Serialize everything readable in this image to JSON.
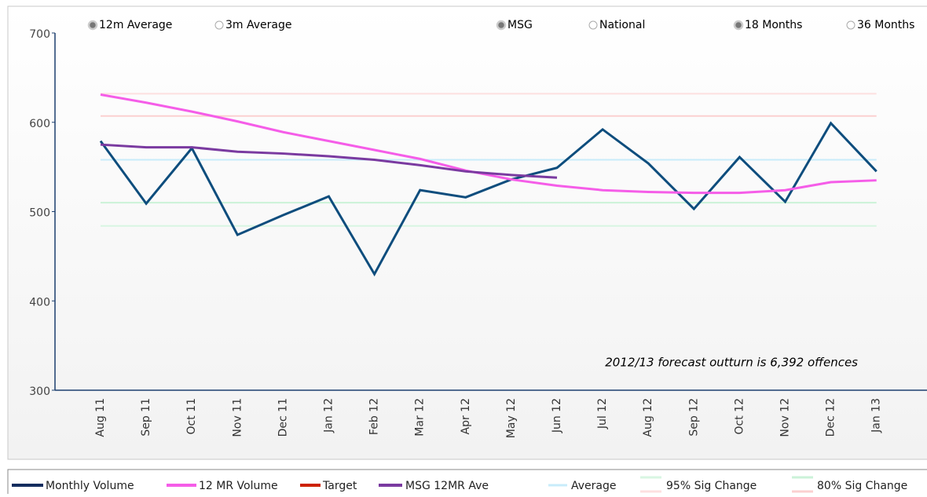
{
  "chart_data": {
    "type": "line",
    "controls": [
      {
        "label": "12m Average",
        "selected": true
      },
      {
        "label": "3m Average",
        "selected": false
      },
      {
        "label": "MSG",
        "selected": true
      },
      {
        "label": "National",
        "selected": false
      },
      {
        "label": "18 Months",
        "selected": true
      },
      {
        "label": "36 Months",
        "selected": false
      }
    ],
    "annotation": "2012/13 forecast outturn is 6,392 offences",
    "categories": [
      "Aug 11",
      "Sep 11",
      "Oct 11",
      "Nov 11",
      "Dec 11",
      "Jan 12",
      "Feb 12",
      "Mar 12",
      "Apr 12",
      "May 12",
      "Jun 12",
      "Jul 12",
      "Aug 12",
      "Sep 12",
      "Oct 12",
      "Nov 12",
      "Dec 12",
      "Jan 13"
    ],
    "series": [
      {
        "name": "Monthly Volume",
        "color": "#0e4d7d",
        "legend_color": "#142c5e",
        "values": [
          579,
          509,
          571,
          474,
          496,
          517,
          430,
          524,
          516,
          536,
          549,
          592,
          554,
          503,
          561,
          511,
          599,
          545
        ]
      },
      {
        "name": "12 MR Volume",
        "color": "#f55de8",
        "legend_color": "#f55de8",
        "values": [
          631,
          622,
          612,
          601,
          589,
          579,
          569,
          559,
          546,
          536,
          529,
          524,
          522,
          521,
          521,
          524,
          533,
          535
        ]
      },
      {
        "name": "Target",
        "color": "#cc2200",
        "legend_color": "#cc2200",
        "values": [
          null,
          null,
          null,
          null,
          null,
          null,
          null,
          null,
          null,
          null,
          null,
          null,
          null,
          null,
          null,
          null,
          null,
          null
        ]
      },
      {
        "name": "MSG 12MR Ave",
        "color": "#7a3aa0",
        "legend_color": "#7a3aa0",
        "values": [
          575,
          572,
          572,
          567,
          565,
          562,
          558,
          552,
          545,
          541,
          538,
          null,
          null,
          null,
          null,
          null,
          null,
          null
        ]
      }
    ],
    "reference_lines": [
      {
        "name": "Average",
        "color": "#c8ecfa",
        "levels": [
          558
        ]
      },
      {
        "name": "95% Sig Change",
        "upper_color": "#fde0e0",
        "lower_color": "#d8f6e2",
        "levels": [
          632,
          484
        ]
      },
      {
        "name": "80% Sig Change",
        "upper_color": "#fbd0d0",
        "lower_color": "#cbf2d8",
        "levels": [
          607,
          510
        ]
      }
    ],
    "ylim": [
      300,
      700
    ],
    "yticks": [
      300,
      400,
      500,
      600,
      700
    ],
    "grid": false
  }
}
